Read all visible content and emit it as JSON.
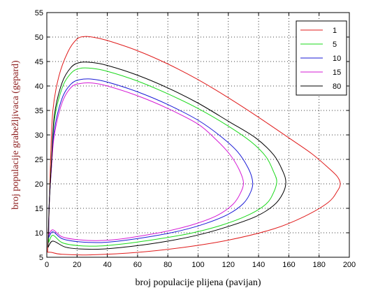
{
  "chart_data": {
    "type": "line",
    "xlabel": "broj populacije plijena (pavijan)",
    "ylabel": "broj populacije grabežljivaca (gepard)",
    "xlim": [
      0,
      200
    ],
    "ylim": [
      5,
      55
    ],
    "xticks": [
      0,
      20,
      40,
      60,
      80,
      100,
      120,
      140,
      160,
      180,
      200
    ],
    "yticks": [
      5,
      10,
      15,
      20,
      25,
      30,
      35,
      40,
      45,
      50,
      55
    ],
    "grid": true,
    "legend_position": "top-right",
    "series": [
      {
        "name": "1",
        "color": "#e01b1b",
        "points": [
          [
            0.5,
            6
          ],
          [
            1.5,
            14
          ],
          [
            2.5,
            25
          ],
          [
            4,
            35
          ],
          [
            8,
            42
          ],
          [
            14,
            47
          ],
          [
            20,
            49.6
          ],
          [
            25,
            50.1
          ],
          [
            30,
            50.0
          ],
          [
            40,
            49.3
          ],
          [
            60,
            47.2
          ],
          [
            80,
            44.5
          ],
          [
            100,
            41.3
          ],
          [
            120,
            37.6
          ],
          [
            140,
            33.6
          ],
          [
            160,
            29.4
          ],
          [
            175,
            26.2
          ],
          [
            186,
            23.3
          ],
          [
            192,
            21.5
          ],
          [
            194,
            20
          ],
          [
            192,
            18.5
          ],
          [
            186,
            16.2
          ],
          [
            170,
            13.3
          ],
          [
            150,
            10.8
          ],
          [
            120,
            8.5
          ],
          [
            90,
            7.0
          ],
          [
            60,
            6.0
          ],
          [
            30,
            5.5
          ],
          [
            10,
            5.6
          ],
          [
            3,
            6
          ],
          [
            0.5,
            6
          ]
        ]
      },
      {
        "name": "5",
        "color": "#1bd91b",
        "points": [
          [
            1.2,
            8
          ],
          [
            1.6,
            16
          ],
          [
            3,
            24
          ],
          [
            5,
            33
          ],
          [
            10,
            39.5
          ],
          [
            16,
            42.6
          ],
          [
            22,
            43.6
          ],
          [
            30,
            43.6
          ],
          [
            40,
            43.0
          ],
          [
            60,
            41.0
          ],
          [
            80,
            38.4
          ],
          [
            100,
            35.4
          ],
          [
            120,
            31.8
          ],
          [
            135,
            28.6
          ],
          [
            145,
            25.5
          ],
          [
            150,
            22.4
          ],
          [
            152,
            20.5
          ],
          [
            150,
            18.3
          ],
          [
            145,
            15.9
          ],
          [
            133,
            13.6
          ],
          [
            115,
            11.5
          ],
          [
            95,
            9.9
          ],
          [
            75,
            8.8
          ],
          [
            55,
            7.9
          ],
          [
            35,
            7.3
          ],
          [
            20,
            7.4
          ],
          [
            10,
            8.0
          ],
          [
            4,
            9.5
          ],
          [
            1.2,
            8
          ]
        ]
      },
      {
        "name": "10",
        "color": "#1a1ad6",
        "points": [
          [
            1.2,
            9
          ],
          [
            1.6,
            16
          ],
          [
            3,
            23
          ],
          [
            5,
            31
          ],
          [
            10,
            37.4
          ],
          [
            16,
            40.4
          ],
          [
            22,
            41.3
          ],
          [
            30,
            41.4
          ],
          [
            40,
            40.8
          ],
          [
            60,
            38.8
          ],
          [
            80,
            36.2
          ],
          [
            100,
            33.0
          ],
          [
            115,
            29.7
          ],
          [
            126,
            26.6
          ],
          [
            133,
            23.3
          ],
          [
            136,
            20.6
          ],
          [
            135,
            18.5
          ],
          [
            130,
            16.0
          ],
          [
            120,
            13.8
          ],
          [
            105,
            11.9
          ],
          [
            88,
            10.4
          ],
          [
            70,
            9.3
          ],
          [
            50,
            8.4
          ],
          [
            35,
            8.0
          ],
          [
            20,
            8.2
          ],
          [
            10,
            8.8
          ],
          [
            4,
            10.2
          ],
          [
            1.2,
            9
          ]
        ]
      },
      {
        "name": "15",
        "color": "#d51ad5",
        "points": [
          [
            1.2,
            9.5
          ],
          [
            1.6,
            16
          ],
          [
            3,
            23
          ],
          [
            5,
            30
          ],
          [
            10,
            36.5
          ],
          [
            16,
            39.7
          ],
          [
            22,
            40.5
          ],
          [
            30,
            40.6
          ],
          [
            40,
            40.0
          ],
          [
            60,
            38.0
          ],
          [
            80,
            35.4
          ],
          [
            100,
            32.2
          ],
          [
            112,
            29.0
          ],
          [
            121,
            26.0
          ],
          [
            127,
            23.0
          ],
          [
            130,
            20.3
          ],
          [
            128,
            18.1
          ],
          [
            123,
            15.8
          ],
          [
            113,
            13.6
          ],
          [
            98,
            11.8
          ],
          [
            82,
            10.5
          ],
          [
            65,
            9.5
          ],
          [
            48,
            8.7
          ],
          [
            33,
            8.4
          ],
          [
            20,
            8.6
          ],
          [
            10,
            9.2
          ],
          [
            4,
            10.6
          ],
          [
            1.2,
            9.5
          ]
        ]
      },
      {
        "name": "80",
        "color": "#000000",
        "points": [
          [
            0.8,
            7
          ],
          [
            1.5,
            15
          ],
          [
            3,
            24
          ],
          [
            5,
            34
          ],
          [
            10,
            40.6
          ],
          [
            16,
            43.8
          ],
          [
            22,
            44.8
          ],
          [
            30,
            44.8
          ],
          [
            40,
            44.2
          ],
          [
            60,
            42.2
          ],
          [
            80,
            39.6
          ],
          [
            100,
            36.5
          ],
          [
            120,
            32.8
          ],
          [
            138,
            29.4
          ],
          [
            150,
            25.9
          ],
          [
            156,
            22.6
          ],
          [
            158,
            20.3
          ],
          [
            156,
            18.0
          ],
          [
            150,
            15.6
          ],
          [
            138,
            13.3
          ],
          [
            118,
            11.1
          ],
          [
            98,
            9.4
          ],
          [
            78,
            8.2
          ],
          [
            58,
            7.3
          ],
          [
            38,
            6.7
          ],
          [
            22,
            6.7
          ],
          [
            12,
            7.1
          ],
          [
            4,
            8.3
          ],
          [
            0.8,
            7
          ]
        ]
      }
    ]
  }
}
